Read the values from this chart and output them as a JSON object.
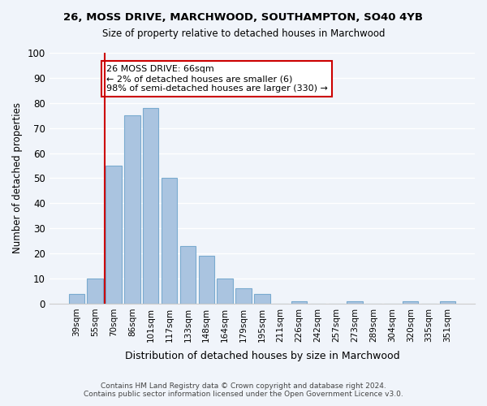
{
  "title1": "26, MOSS DRIVE, MARCHWOOD, SOUTHAMPTON, SO40 4YB",
  "title2": "Size of property relative to detached houses in Marchwood",
  "xlabel": "Distribution of detached houses by size in Marchwood",
  "ylabel": "Number of detached properties",
  "categories": [
    "39sqm",
    "55sqm",
    "70sqm",
    "86sqm",
    "101sqm",
    "117sqm",
    "133sqm",
    "148sqm",
    "164sqm",
    "179sqm",
    "195sqm",
    "211sqm",
    "226sqm",
    "242sqm",
    "257sqm",
    "273sqm",
    "289sqm",
    "304sqm",
    "320sqm",
    "335sqm",
    "351sqm"
  ],
  "values": [
    4,
    10,
    55,
    75,
    78,
    50,
    23,
    19,
    10,
    6,
    4,
    0,
    1,
    0,
    0,
    1,
    0,
    0,
    1,
    0,
    1
  ],
  "bar_color": "#aac4e0",
  "bar_edge_color": "#7aabcf",
  "vline_x": 1,
  "vline_color": "#cc0000",
  "annotation_title": "26 MOSS DRIVE: 66sqm",
  "annotation_line1": "← 2% of detached houses are smaller (6)",
  "annotation_line2": "98% of semi-detached houses are larger (330) →",
  "annotation_box_color": "#ffffff",
  "annotation_box_edge": "#cc0000",
  "ylim": [
    0,
    100
  ],
  "yticks": [
    0,
    10,
    20,
    30,
    40,
    50,
    60,
    70,
    80,
    90,
    100
  ],
  "footnote1": "Contains HM Land Registry data © Crown copyright and database right 2024.",
  "footnote2": "Contains public sector information licensed under the Open Government Licence v3.0.",
  "bg_color": "#f0f4fa"
}
